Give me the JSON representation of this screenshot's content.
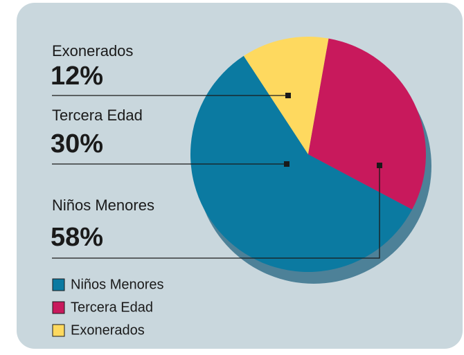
{
  "chart_data": {
    "type": "pie",
    "categories": [
      "Niños Menores",
      "Tercera Edad",
      "Exonerados"
    ],
    "values": [
      58,
      30,
      12
    ],
    "value_labels": [
      "58%",
      "30%",
      "12%"
    ],
    "colors": [
      "#0b7aa1",
      "#c8195c",
      "#fed95f"
    ],
    "legend": "bottom-left"
  }
}
